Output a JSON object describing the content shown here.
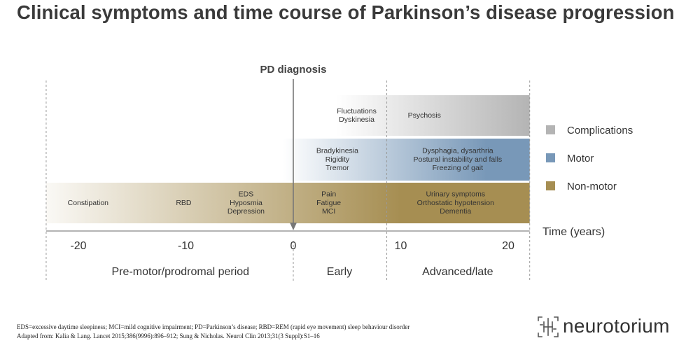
{
  "title": "Clinical symptoms and time course of Parkinson’s disease progression",
  "diagnosis_label": "PD diagnosis",
  "axis": {
    "label": "Time (years)",
    "min": -23,
    "max": 22,
    "ticks": [
      -20,
      -10,
      0,
      10,
      20
    ],
    "tick_labels": [
      "-20",
      "-10",
      "0",
      "10",
      "20"
    ],
    "dividers": [
      -23,
      0,
      8.7,
      22
    ]
  },
  "periods": [
    {
      "label": "Pre-motor/prodromal period",
      "center": -10.5
    },
    {
      "label": "Early",
      "center": 4.3
    },
    {
      "label": "Advanced/late",
      "center": 15.3
    }
  ],
  "bands": [
    {
      "key": "complications",
      "color": "#b4b4b4",
      "start": 4,
      "full": 22,
      "end": 22
    },
    {
      "key": "motor",
      "color": "#7898b8",
      "start": -1,
      "full": 18,
      "end": 22
    },
    {
      "key": "non_motor",
      "color": "#a68e52",
      "start": -25,
      "full": 10,
      "end": 22
    }
  ],
  "legend": [
    {
      "label": "Complications",
      "color": "#b4b4b4"
    },
    {
      "label": "Motor",
      "color": "#7898b8"
    },
    {
      "label": "Non-motor",
      "color": "#a68e52"
    }
  ],
  "symptoms": {
    "complications": [
      {
        "lines": [
          "Fluctuations",
          "Dyskinesia"
        ],
        "x": 5.9
      },
      {
        "lines": [
          "Psychosis"
        ],
        "x": 12.2
      }
    ],
    "motor": [
      {
        "lines": [
          "Bradykinesia",
          "Rigidity",
          "Tremor"
        ],
        "x": 4.1
      },
      {
        "lines": [
          "Dysphagia, dysarthria",
          "Postural instability and falls",
          "Freezing of gait"
        ],
        "x": 15.3
      }
    ],
    "non_motor": [
      {
        "lines": [
          "Constipation"
        ],
        "x": -19.1
      },
      {
        "lines": [
          "RBD"
        ],
        "x": -10.2
      },
      {
        "lines": [
          "EDS",
          "Hyposmia",
          "Depression"
        ],
        "x": -4.4
      },
      {
        "lines": [
          "Pain",
          "Fatigue",
          "MCI"
        ],
        "x": 3.3
      },
      {
        "lines": [
          "Urinary symptoms",
          "Orthostatic hypotension",
          "Dementia"
        ],
        "x": 15.1
      }
    ]
  },
  "footnotes": {
    "abbreviations": "EDS=excessive daytime sleepiness; MCI=mild cognitive impairment; PD=Parkinson’s disease; RBD=REM (rapid eye movement) sleep behaviour disorder",
    "source": "Adapted from: Kalia & Lang. Lancet 2015;386(9996):896–912; Sung & Nicholas. Neurol Clin 2013;31(3 Suppl):S1–16"
  },
  "brand": "neurotorium"
}
